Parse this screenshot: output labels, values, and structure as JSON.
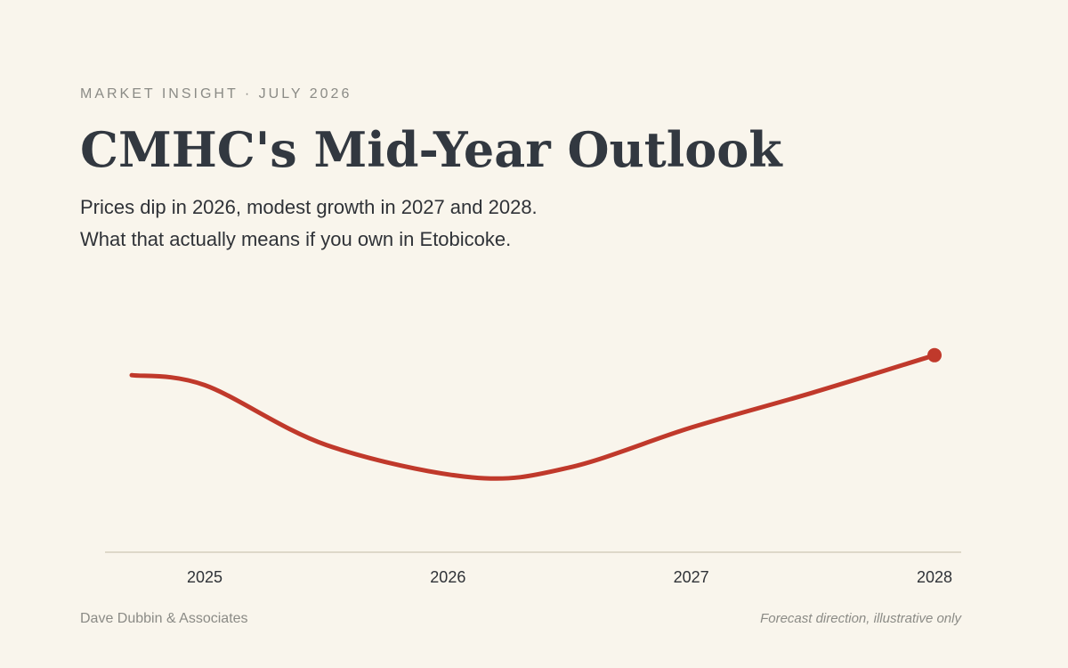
{
  "chart_data": {
    "type": "line",
    "kicker": "MARKET INSIGHT · JULY 2026",
    "title": "CMHC's Mid-Year Outlook",
    "subtitle": [
      "Prices dip in 2026, modest growth in 2027 and 2028.",
      "What that actually means if you own in Etobicoke."
    ],
    "source": "Dave Dubbin & Associates",
    "note": "Forecast direction, illustrative only",
    "x": [
      2024.7,
      2025,
      2025.5,
      2026.1,
      2026.5,
      2027,
      2027.5,
      2028
    ],
    "values": [
      71,
      67,
      43,
      30,
      34,
      50,
      64,
      79
    ],
    "color": "#c0392b",
    "end_marker": true,
    "xlim": [
      2024.7,
      2028
    ],
    "xticks": [
      2025,
      2026,
      2027,
      2028
    ],
    "ylim": [
      0,
      100
    ]
  }
}
